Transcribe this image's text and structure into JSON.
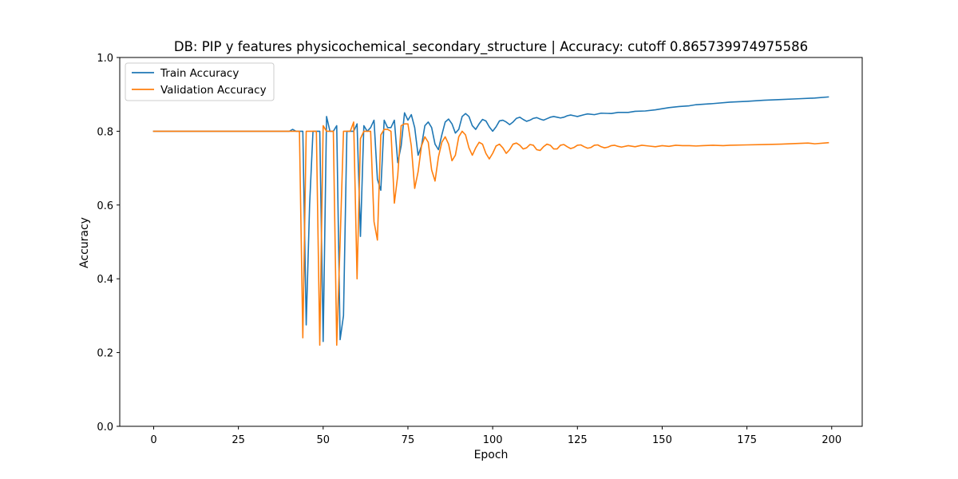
{
  "chart_data": {
    "type": "line",
    "title": "DB: PIP y features physicochemical_secondary_structure | Accuracy: cutoff 0.865739974975586",
    "xlabel": "Epoch",
    "ylabel": "Accuracy",
    "xlim": [
      -10,
      209
    ],
    "ylim": [
      0,
      1
    ],
    "xticks": [
      0,
      25,
      50,
      75,
      100,
      125,
      150,
      175,
      200
    ],
    "yticks": [
      0.0,
      0.2,
      0.4,
      0.6,
      0.8,
      1.0
    ],
    "ytick_labels": [
      "0.0",
      "0.2",
      "0.4",
      "0.6",
      "0.8",
      "1.0"
    ],
    "grid": false,
    "legend_position": "top-left",
    "series": [
      {
        "name": "Train Accuracy",
        "color": "#1f77b4",
        "points": [
          [
            0,
            0.8
          ],
          [
            40,
            0.8
          ],
          [
            41,
            0.805
          ],
          [
            42,
            0.8
          ],
          [
            43,
            0.8
          ],
          [
            44,
            0.8
          ],
          [
            45,
            0.275
          ],
          [
            46,
            0.6
          ],
          [
            47,
            0.8
          ],
          [
            48,
            0.8
          ],
          [
            49,
            0.8
          ],
          [
            50,
            0.23
          ],
          [
            51,
            0.84
          ],
          [
            52,
            0.8
          ],
          [
            53,
            0.8
          ],
          [
            54,
            0.815
          ],
          [
            55,
            0.235
          ],
          [
            56,
            0.3
          ],
          [
            57,
            0.8
          ],
          [
            58,
            0.8
          ],
          [
            59,
            0.8
          ],
          [
            60,
            0.82
          ],
          [
            61,
            0.515
          ],
          [
            62,
            0.815
          ],
          [
            63,
            0.8
          ],
          [
            64,
            0.81
          ],
          [
            65,
            0.83
          ],
          [
            66,
            0.67
          ],
          [
            67,
            0.64
          ],
          [
            68,
            0.83
          ],
          [
            69,
            0.81
          ],
          [
            70,
            0.81
          ],
          [
            71,
            0.83
          ],
          [
            72,
            0.715
          ],
          [
            73,
            0.76
          ],
          [
            74,
            0.85
          ],
          [
            75,
            0.83
          ],
          [
            76,
            0.845
          ],
          [
            77,
            0.81
          ],
          [
            78,
            0.735
          ],
          [
            79,
            0.76
          ],
          [
            80,
            0.815
          ],
          [
            81,
            0.825
          ],
          [
            82,
            0.81
          ],
          [
            83,
            0.765
          ],
          [
            84,
            0.75
          ],
          [
            85,
            0.79
          ],
          [
            86,
            0.825
          ],
          [
            87,
            0.833
          ],
          [
            88,
            0.82
          ],
          [
            89,
            0.795
          ],
          [
            90,
            0.805
          ],
          [
            91,
            0.84
          ],
          [
            92,
            0.848
          ],
          [
            93,
            0.84
          ],
          [
            94,
            0.815
          ],
          [
            95,
            0.805
          ],
          [
            96,
            0.82
          ],
          [
            97,
            0.832
          ],
          [
            98,
            0.828
          ],
          [
            99,
            0.812
          ],
          [
            100,
            0.8
          ],
          [
            101,
            0.812
          ],
          [
            102,
            0.828
          ],
          [
            103,
            0.83
          ],
          [
            104,
            0.825
          ],
          [
            105,
            0.818
          ],
          [
            106,
            0.825
          ],
          [
            107,
            0.835
          ],
          [
            108,
            0.838
          ],
          [
            109,
            0.832
          ],
          [
            110,
            0.827
          ],
          [
            111,
            0.83
          ],
          [
            112,
            0.835
          ],
          [
            113,
            0.837
          ],
          [
            114,
            0.833
          ],
          [
            115,
            0.83
          ],
          [
            116,
            0.834
          ],
          [
            117,
            0.838
          ],
          [
            118,
            0.84
          ],
          [
            119,
            0.838
          ],
          [
            120,
            0.836
          ],
          [
            121,
            0.838
          ],
          [
            122,
            0.842
          ],
          [
            123,
            0.844
          ],
          [
            124,
            0.842
          ],
          [
            125,
            0.84
          ],
          [
            127,
            0.845
          ],
          [
            128,
            0.847
          ],
          [
            130,
            0.845
          ],
          [
            132,
            0.849
          ],
          [
            135,
            0.848
          ],
          [
            137,
            0.851
          ],
          [
            140,
            0.851
          ],
          [
            142,
            0.854
          ],
          [
            145,
            0.855
          ],
          [
            148,
            0.858
          ],
          [
            150,
            0.861
          ],
          [
            152,
            0.864
          ],
          [
            155,
            0.867
          ],
          [
            158,
            0.869
          ],
          [
            160,
            0.872
          ],
          [
            165,
            0.875
          ],
          [
            170,
            0.879
          ],
          [
            175,
            0.881
          ],
          [
            180,
            0.884
          ],
          [
            185,
            0.886
          ],
          [
            190,
            0.888
          ],
          [
            195,
            0.89
          ],
          [
            199,
            0.893
          ]
        ]
      },
      {
        "name": "Validation Accuracy",
        "color": "#ff7f0e",
        "points": [
          [
            0,
            0.8
          ],
          [
            40,
            0.8
          ],
          [
            42,
            0.8
          ],
          [
            43,
            0.8
          ],
          [
            44,
            0.24
          ],
          [
            45,
            0.8
          ],
          [
            46,
            0.8
          ],
          [
            47,
            0.8
          ],
          [
            48,
            0.8
          ],
          [
            49,
            0.22
          ],
          [
            50,
            0.815
          ],
          [
            51,
            0.8
          ],
          [
            52,
            0.8
          ],
          [
            53,
            0.8
          ],
          [
            54,
            0.22
          ],
          [
            55,
            0.5
          ],
          [
            56,
            0.8
          ],
          [
            57,
            0.8
          ],
          [
            58,
            0.8
          ],
          [
            59,
            0.825
          ],
          [
            60,
            0.4
          ],
          [
            61,
            0.78
          ],
          [
            62,
            0.8
          ],
          [
            63,
            0.8
          ],
          [
            64,
            0.8
          ],
          [
            65,
            0.555
          ],
          [
            66,
            0.505
          ],
          [
            67,
            0.79
          ],
          [
            68,
            0.805
          ],
          [
            69,
            0.805
          ],
          [
            70,
            0.8
          ],
          [
            71,
            0.605
          ],
          [
            72,
            0.68
          ],
          [
            73,
            0.815
          ],
          [
            74,
            0.82
          ],
          [
            75,
            0.82
          ],
          [
            76,
            0.76
          ],
          [
            77,
            0.645
          ],
          [
            78,
            0.69
          ],
          [
            79,
            0.76
          ],
          [
            80,
            0.785
          ],
          [
            81,
            0.77
          ],
          [
            82,
            0.695
          ],
          [
            83,
            0.665
          ],
          [
            84,
            0.73
          ],
          [
            85,
            0.77
          ],
          [
            86,
            0.785
          ],
          [
            87,
            0.765
          ],
          [
            88,
            0.72
          ],
          [
            89,
            0.735
          ],
          [
            90,
            0.785
          ],
          [
            91,
            0.8
          ],
          [
            92,
            0.79
          ],
          [
            93,
            0.755
          ],
          [
            94,
            0.735
          ],
          [
            95,
            0.755
          ],
          [
            96,
            0.77
          ],
          [
            97,
            0.765
          ],
          [
            98,
            0.74
          ],
          [
            99,
            0.725
          ],
          [
            100,
            0.74
          ],
          [
            101,
            0.76
          ],
          [
            102,
            0.765
          ],
          [
            103,
            0.755
          ],
          [
            104,
            0.74
          ],
          [
            105,
            0.75
          ],
          [
            106,
            0.765
          ],
          [
            107,
            0.768
          ],
          [
            108,
            0.762
          ],
          [
            109,
            0.752
          ],
          [
            110,
            0.755
          ],
          [
            111,
            0.764
          ],
          [
            112,
            0.762
          ],
          [
            113,
            0.75
          ],
          [
            114,
            0.748
          ],
          [
            115,
            0.758
          ],
          [
            116,
            0.765
          ],
          [
            117,
            0.762
          ],
          [
            118,
            0.752
          ],
          [
            119,
            0.752
          ],
          [
            120,
            0.762
          ],
          [
            121,
            0.764
          ],
          [
            122,
            0.758
          ],
          [
            123,
            0.753
          ],
          [
            124,
            0.756
          ],
          [
            125,
            0.762
          ],
          [
            126,
            0.763
          ],
          [
            127,
            0.758
          ],
          [
            128,
            0.754
          ],
          [
            129,
            0.756
          ],
          [
            130,
            0.762
          ],
          [
            131,
            0.763
          ],
          [
            132,
            0.758
          ],
          [
            133,
            0.755
          ],
          [
            134,
            0.757
          ],
          [
            135,
            0.761
          ],
          [
            136,
            0.762
          ],
          [
            137,
            0.759
          ],
          [
            138,
            0.757
          ],
          [
            140,
            0.761
          ],
          [
            142,
            0.758
          ],
          [
            144,
            0.762
          ],
          [
            146,
            0.76
          ],
          [
            148,
            0.758
          ],
          [
            150,
            0.761
          ],
          [
            152,
            0.759
          ],
          [
            154,
            0.762
          ],
          [
            156,
            0.761
          ],
          [
            158,
            0.761
          ],
          [
            160,
            0.76
          ],
          [
            162,
            0.761
          ],
          [
            165,
            0.762
          ],
          [
            168,
            0.761
          ],
          [
            170,
            0.762
          ],
          [
            175,
            0.763
          ],
          [
            180,
            0.764
          ],
          [
            185,
            0.765
          ],
          [
            190,
            0.767
          ],
          [
            193,
            0.768
          ],
          [
            195,
            0.766
          ],
          [
            199,
            0.769
          ]
        ]
      }
    ]
  }
}
